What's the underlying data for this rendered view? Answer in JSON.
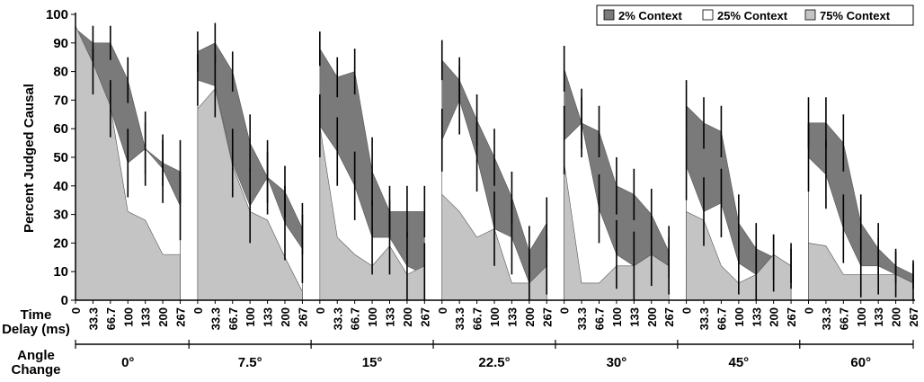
{
  "chart_data": {
    "type": "area",
    "ylabel": "Percent Judged Causal",
    "ylim": [
      0,
      100
    ],
    "yticks": [
      0,
      10,
      20,
      30,
      40,
      50,
      60,
      70,
      80,
      90,
      100
    ],
    "x_row_label_1": "Time",
    "x_row_label_2": "Delay (ms)",
    "group_row_label_1": "Angle",
    "group_row_label_2": "Change",
    "delays": [
      "0",
      "33.3",
      "66.7",
      "100",
      "133",
      "200",
      "267"
    ],
    "groups": [
      "0°",
      "7.5°",
      "15°",
      "22.5°",
      "30°",
      "45°",
      "60°"
    ],
    "legend_position": "top-right",
    "series": [
      {
        "name": "2% Context",
        "color": "#7a7a7a",
        "values": [
          [
            95,
            90,
            90,
            77,
            53,
            48,
            45
          ],
          [
            87,
            90,
            80,
            55,
            43,
            38,
            25
          ],
          [
            88,
            78,
            80,
            45,
            31,
            31,
            31
          ],
          [
            84,
            77,
            63,
            50,
            36,
            17,
            27
          ],
          [
            81,
            62,
            59,
            40,
            37,
            30,
            17
          ],
          [
            68,
            62,
            59,
            27,
            18,
            15,
            12
          ],
          [
            62,
            62,
            55,
            27,
            18,
            12,
            9
          ]
        ],
        "errors": [
          [
            0,
            6,
            6,
            8,
            9,
            8,
            11
          ],
          [
            7,
            7,
            7,
            10,
            9,
            9,
            9
          ],
          [
            6,
            7,
            8,
            12,
            9,
            9,
            9
          ],
          [
            7,
            8,
            9,
            10,
            9,
            9,
            9
          ],
          [
            8,
            9,
            9,
            10,
            9,
            9,
            9
          ],
          [
            9,
            9,
            9,
            10,
            9,
            8,
            6
          ],
          [
            9,
            9,
            10,
            10,
            9,
            6,
            5
          ]
        ]
      },
      {
        "name": "25% Context",
        "color": "#ffffff",
        "values": [
          [
            94,
            80,
            67,
            48,
            53,
            46,
            33
          ],
          [
            77,
            75,
            48,
            33,
            43,
            27,
            18
          ],
          [
            61,
            52,
            40,
            22,
            22,
            12,
            9
          ],
          [
            56,
            70,
            50,
            25,
            22,
            6,
            12
          ],
          [
            56,
            62,
            32,
            16,
            12,
            16,
            12
          ],
          [
            47,
            31,
            34,
            13,
            9,
            13,
            12
          ],
          [
            50,
            44,
            25,
            12,
            12,
            9,
            6
          ]
        ],
        "errors": [
          [
            0,
            8,
            10,
            12,
            13,
            12,
            12
          ],
          [
            9,
            11,
            12,
            13,
            13,
            13,
            12
          ],
          [
            11,
            12,
            12,
            13,
            13,
            12,
            11
          ],
          [
            11,
            12,
            12,
            13,
            13,
            11,
            10
          ],
          [
            12,
            12,
            12,
            12,
            12,
            11,
            10
          ],
          [
            12,
            12,
            12,
            11,
            10,
            10,
            8
          ],
          [
            12,
            12,
            12,
            11,
            10,
            8,
            7
          ]
        ]
      },
      {
        "name": "75% Context",
        "color": "#c4c4c4",
        "values": [
          [
            96,
            83,
            68,
            31,
            28,
            16,
            16
          ],
          [
            67,
            74,
            47,
            31,
            28,
            15,
            3
          ],
          [
            61,
            22,
            16,
            12,
            19,
            9,
            12
          ],
          [
            37,
            31,
            22,
            25,
            6,
            6,
            12
          ],
          [
            48,
            6,
            6,
            12,
            12,
            16,
            12
          ],
          [
            31,
            28,
            12,
            6,
            9,
            16,
            12
          ],
          [
            20,
            19,
            9,
            9,
            9,
            9,
            6
          ]
        ]
      }
    ]
  }
}
